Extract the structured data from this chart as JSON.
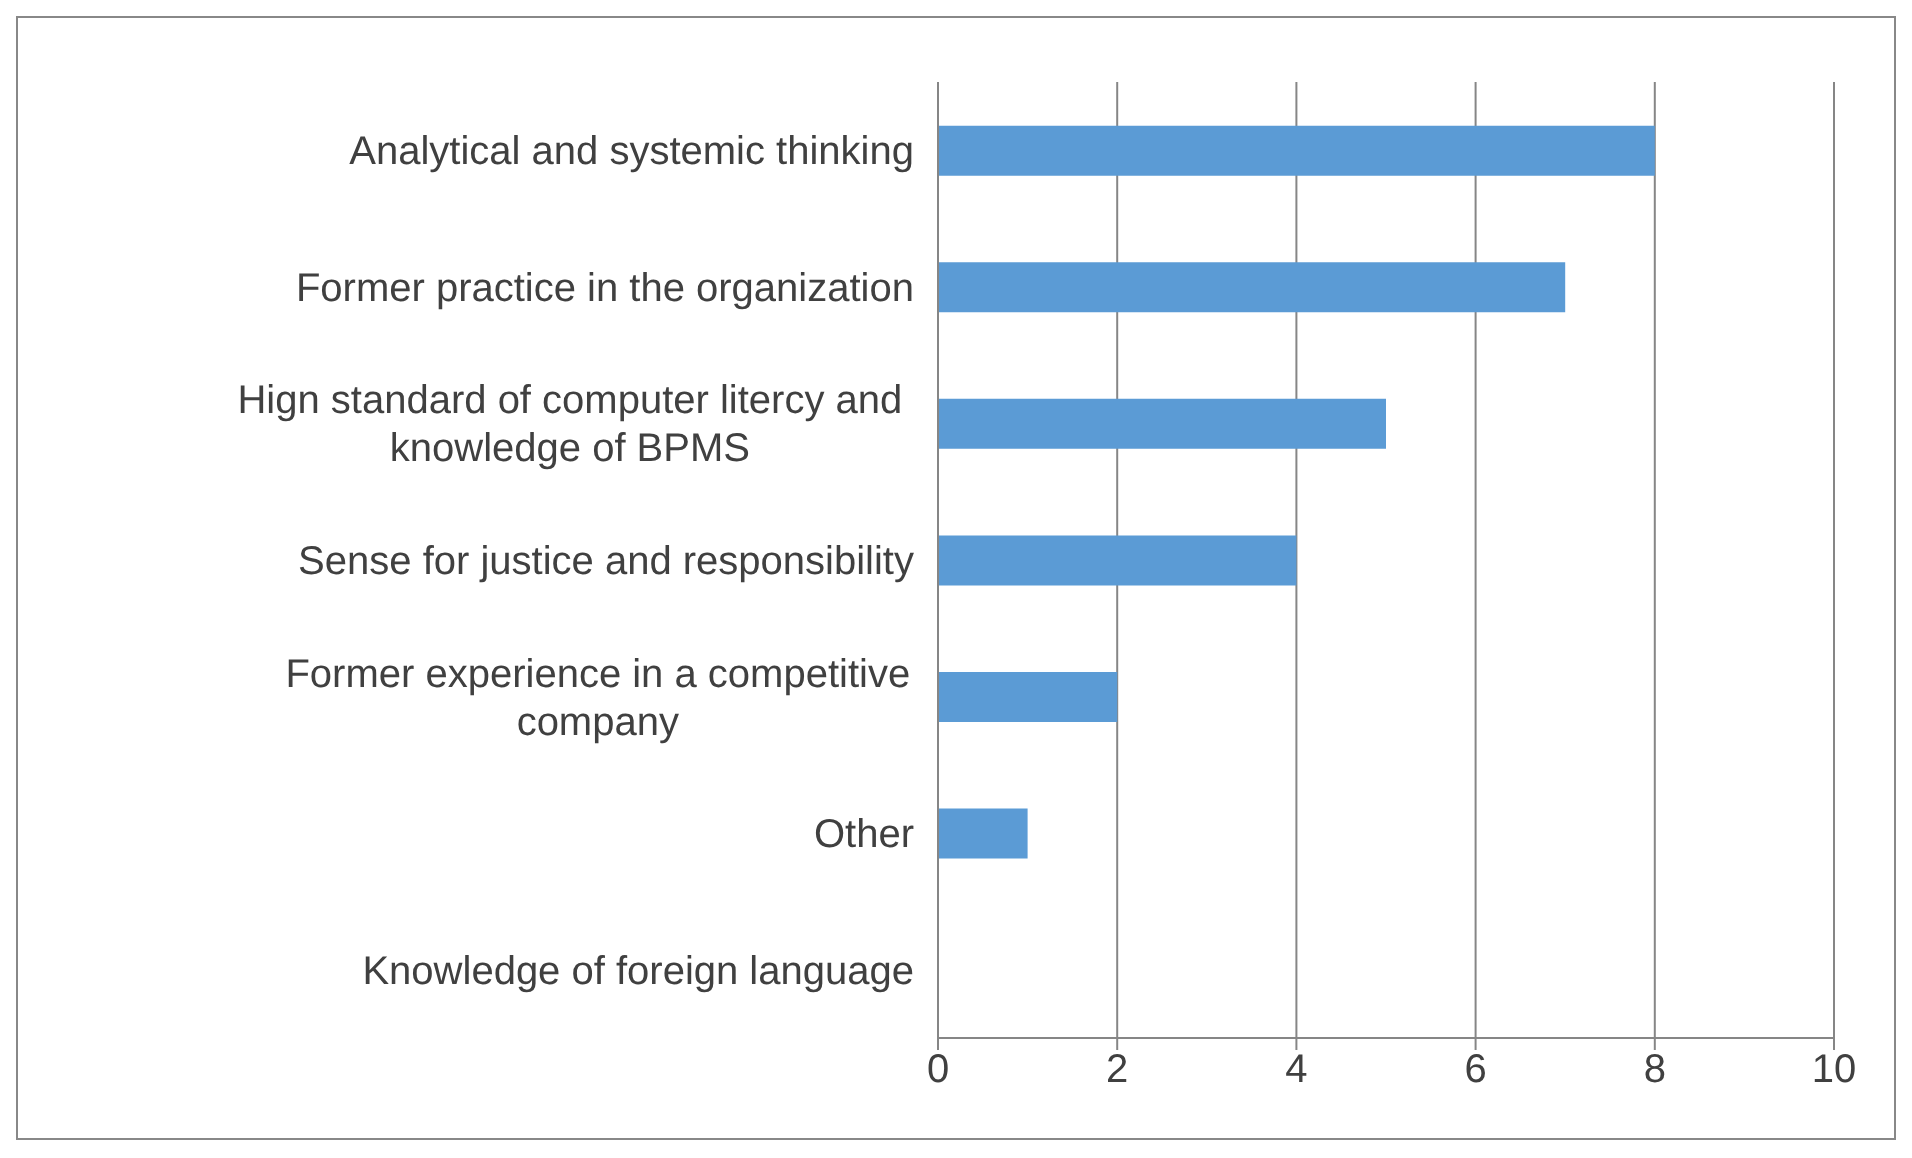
{
  "chart_data": {
    "type": "bar",
    "orientation": "horizontal",
    "categories": [
      "Analytical and systemic thinking",
      "Former practice in the organization",
      "Hign standard of computer litercy and knowledge of BPMS",
      "Sense for justice and responsibility",
      "Former experience in a competitive company",
      "Other",
      "Knowledge of foreign language"
    ],
    "values": [
      8,
      7,
      5,
      4,
      2,
      1,
      0
    ],
    "color": "#5b9bd5",
    "xlim": [
      0,
      10
    ],
    "xticks": [
      0,
      2,
      4,
      6,
      8,
      10
    ],
    "grid": "x"
  }
}
